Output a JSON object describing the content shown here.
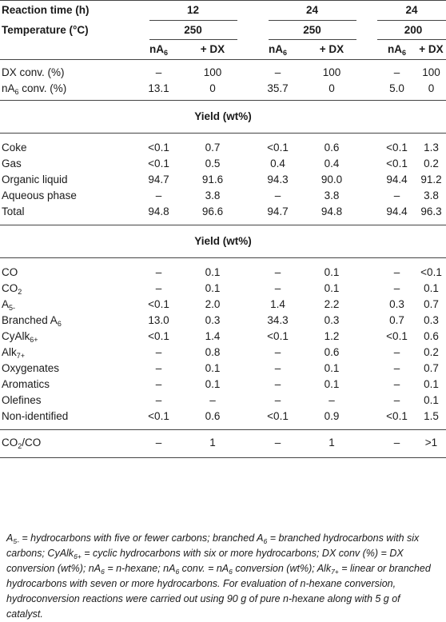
{
  "header": {
    "reaction_time_label": "Reaction time (h)",
    "temperature_label": "Temperature (°C)",
    "groups": [
      {
        "time": "12",
        "temperature": "250"
      },
      {
        "time": "24",
        "temperature": "250"
      },
      {
        "time": "24",
        "temperature": "200"
      }
    ],
    "col_na6": "nA",
    "col_na6_sub": "6",
    "col_dx": "+ DX"
  },
  "conversion_rows": [
    {
      "label": "DX conv. (%)",
      "values": [
        "–",
        "100",
        "–",
        "100",
        "–",
        "100"
      ]
    },
    {
      "label": "nA",
      "label_sub": "6",
      "label_suffix": " conv. (%)",
      "values": [
        "13.1",
        "0",
        "35.7",
        "0",
        "5.0",
        "0"
      ]
    }
  ],
  "section1_title": "Yield (wt%)",
  "yield_rows": [
    {
      "label": "Coke",
      "values": [
        "<0.1",
        "0.7",
        "<0.1",
        "0.6",
        "<0.1",
        "1.3"
      ]
    },
    {
      "label": "Gas",
      "values": [
        "<0.1",
        "0.5",
        "0.4",
        "0.4",
        "<0.1",
        "0.2"
      ]
    },
    {
      "label": "Organic liquid",
      "values": [
        "94.7",
        "91.6",
        "94.3",
        "90.0",
        "94.4",
        "91.2"
      ]
    },
    {
      "label": "Aqueous phase",
      "values": [
        "–",
        "3.8",
        "–",
        "3.8",
        "–",
        "3.8"
      ]
    },
    {
      "label": "Total",
      "values": [
        "94.8",
        "96.6",
        "94.7",
        "94.8",
        "94.4",
        "96.3"
      ]
    }
  ],
  "section2_title": "Yield (wt%)",
  "gas_rows": [
    {
      "label": "CO",
      "label_sub": "",
      "values": [
        "–",
        "0.1",
        "–",
        "0.1",
        "–",
        "<0.1"
      ]
    },
    {
      "label": "CO",
      "label_sub": "2",
      "values": [
        "–",
        "0.1",
        "–",
        "0.1",
        "–",
        "0.1"
      ]
    },
    {
      "label": "A",
      "label_sub": "5-",
      "values": [
        "<0.1",
        "2.0",
        "1.4",
        "2.2",
        "0.3",
        "0.7"
      ]
    },
    {
      "label": "Branched A",
      "label_sub": "6",
      "values": [
        "13.0",
        "0.3",
        "34.3",
        "0.3",
        "0.7",
        "0.3"
      ]
    },
    {
      "label": "CyAlk",
      "label_sub": "6+",
      "values": [
        "<0.1",
        "1.4",
        "<0.1",
        "1.2",
        "<0.1",
        "0.6"
      ]
    },
    {
      "label": "Alk",
      "label_sub": "7+",
      "values": [
        "–",
        "0.8",
        "–",
        "0.6",
        "–",
        "0.2"
      ]
    },
    {
      "label": "Oxygenates",
      "label_sub": "",
      "values": [
        "–",
        "0.1",
        "–",
        "0.1",
        "–",
        "0.7"
      ]
    },
    {
      "label": "Aromatics",
      "label_sub": "",
      "values": [
        "–",
        "0.1",
        "–",
        "0.1",
        "–",
        "0.1"
      ]
    },
    {
      "label": "Olefines",
      "label_sub": "",
      "values": [
        "–",
        "–",
        "–",
        "–",
        "–",
        "0.1"
      ]
    },
    {
      "label": "Non-identified",
      "label_sub": "",
      "values": [
        "<0.1",
        "0.6",
        "<0.1",
        "0.9",
        "<0.1",
        "1.5"
      ]
    }
  ],
  "ratio_row": {
    "label": "CO",
    "label_sub": "2",
    "label_suffix": "/CO",
    "values": [
      "–",
      "1",
      "–",
      "1",
      "–",
      ">1"
    ]
  },
  "footnote": {
    "p1": "A",
    "p1_sub": "5-",
    "p2": " = hydrocarbons with five or fewer carbons; branched A",
    "p2_sub": "6",
    "p3": " = branched hydrocarbons with six carbons; CyAlk",
    "p3_sub": "6+",
    "p4": " = cyclic hydrocarbons with six or more hydrocarbons; DX conv (%) = DX conversion (wt%); nA",
    "p4_sub": "6",
    "p5": " = n-hexane; nA",
    "p5_sub": "6",
    "p6": " conv. = nA",
    "p6_sub": "6",
    "p7": " conversion (wt%); Alk",
    "p7_sub": "7+",
    "p8": " = linear or branched hydrocarbons with seven or more hydrocarbons. For evaluation of n-hexane conversion, hydroconversion reactions were carried out using 90 g of pure n-hexane along with 5 g of catalyst."
  }
}
